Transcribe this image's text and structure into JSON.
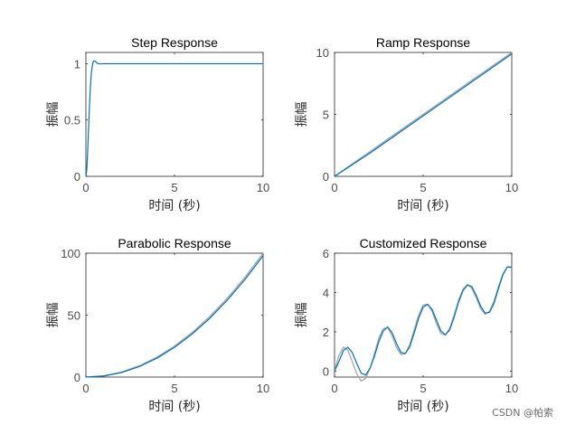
{
  "watermark": "CSDN @帕索",
  "colors": {
    "primary": "#0072BD",
    "reference": "#a6a6a6",
    "axis": "#262626",
    "tick_text": "#4d4d4d"
  },
  "chart_data": [
    {
      "type": "line",
      "title": "Step Response",
      "xlabel": "时间 (秒)",
      "ylabel": "振幅",
      "xlim": [
        0,
        10
      ],
      "ylim": [
        0,
        1.1
      ],
      "xticks": [
        0,
        5,
        10
      ],
      "yticks": [
        0,
        0.5,
        1
      ],
      "ytick_labels": [
        "0",
        "0.5",
        "1"
      ],
      "grid": false,
      "x": [
        0,
        0.05,
        0.1,
        0.15,
        0.2,
        0.25,
        0.3,
        0.35,
        0.4,
        0.45,
        0.5,
        0.6,
        0.7,
        0.8,
        1.0,
        1.5,
        2,
        4,
        6,
        8,
        10
      ],
      "series": [
        {
          "values": [
            0,
            0.06,
            0.22,
            0.42,
            0.62,
            0.78,
            0.9,
            0.97,
            1.01,
            1.025,
            1.025,
            1.01,
            1.0,
            0.998,
            1.0,
            1.0,
            1.0,
            1.0,
            1.0,
            1.0,
            1.0
          ]
        }
      ]
    },
    {
      "type": "line",
      "title": "Ramp Response",
      "xlabel": "时间 (秒)",
      "ylabel": "振幅",
      "xlim": [
        0,
        10
      ],
      "ylim": [
        0,
        10
      ],
      "xticks": [
        0,
        5,
        10
      ],
      "yticks": [
        0,
        5,
        10
      ],
      "ytick_labels": [
        "0",
        "5",
        "10"
      ],
      "grid": false,
      "x": [
        0,
        2,
        4,
        6,
        8,
        10
      ],
      "series": [
        {
          "role": "input",
          "values": [
            0,
            2,
            4,
            6,
            8,
            10
          ]
        },
        {
          "role": "output",
          "values": [
            0,
            1.88,
            3.88,
            5.88,
            7.88,
            9.88
          ]
        }
      ]
    },
    {
      "type": "line",
      "title": "Parabolic Response",
      "xlabel": "时间 (秒)",
      "ylabel": "振幅",
      "xlim": [
        0,
        10
      ],
      "ylim": [
        0,
        100
      ],
      "xticks": [
        0,
        5,
        10
      ],
      "yticks": [
        0,
        50,
        100
      ],
      "ytick_labels": [
        "0",
        "50",
        "100"
      ],
      "grid": false,
      "x": [
        0,
        1,
        2,
        3,
        4,
        5,
        6,
        7,
        8,
        9,
        10
      ],
      "series": [
        {
          "role": "input",
          "values": [
            0,
            1,
            4,
            9,
            16,
            25,
            36,
            49,
            64,
            81,
            100
          ]
        },
        {
          "role": "output",
          "values": [
            0,
            0.8,
            3.6,
            8.4,
            15.2,
            24,
            34.8,
            47.6,
            62.4,
            79.2,
            98
          ]
        }
      ]
    },
    {
      "type": "line",
      "title": "Customized Response",
      "xlabel": "时间 (秒)",
      "ylabel": "振幅",
      "xlim": [
        0,
        10
      ],
      "ylim": [
        -0.3,
        6
      ],
      "xticks": [
        0,
        5,
        10
      ],
      "yticks": [
        0,
        2,
        4,
        6
      ],
      "ytick_labels": [
        "0",
        "2",
        "4",
        "6"
      ],
      "grid": false,
      "x": [
        0,
        0.25,
        0.5,
        0.75,
        1.0,
        1.25,
        1.5,
        1.75,
        2.0,
        2.25,
        2.5,
        2.75,
        3.0,
        3.25,
        3.5,
        3.75,
        4.0,
        4.25,
        4.5,
        4.75,
        5.0,
        5.25,
        5.5,
        5.75,
        6.0,
        6.25,
        6.5,
        6.75,
        7.0,
        7.25,
        7.5,
        7.75,
        8.0,
        8.25,
        8.5,
        8.75,
        9.0,
        9.25,
        9.5,
        9.75,
        10.0
      ],
      "series": [
        {
          "role": "input",
          "values": [
            0,
            0.81,
            1.22,
            1.07,
            0.49,
            -0.13,
            -0.5,
            -0.37,
            0.13,
            0.88,
            1.69,
            2.16,
            2.22,
            1.79,
            1.2,
            0.84,
            0.9,
            1.37,
            2.13,
            2.86,
            3.36,
            3.4,
            3.05,
            2.42,
            1.91,
            1.84,
            2.19,
            2.87,
            3.62,
            4.17,
            4.41,
            4.21,
            3.73,
            3.17,
            2.89,
            3.05,
            3.57,
            4.3,
            4.95,
            5.3,
            5.25
          ]
        },
        {
          "role": "output",
          "values": [
            0,
            0.5,
            1.05,
            1.22,
            0.95,
            0.4,
            -0.1,
            -0.2,
            0.15,
            0.75,
            1.5,
            2.05,
            2.25,
            1.95,
            1.4,
            0.95,
            0.9,
            1.25,
            1.95,
            2.7,
            3.25,
            3.4,
            3.15,
            2.6,
            2.05,
            1.85,
            2.1,
            2.75,
            3.5,
            4.1,
            4.38,
            4.3,
            3.85,
            3.3,
            2.95,
            3.0,
            3.45,
            4.2,
            4.9,
            5.3,
            5.3
          ]
        }
      ]
    }
  ]
}
